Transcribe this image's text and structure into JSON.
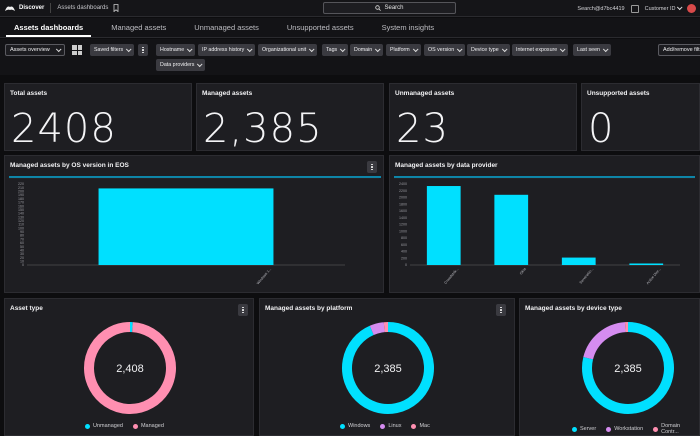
{
  "topbar": {
    "app_name": "Discover",
    "breadcrumb": "Assets dashboards",
    "search_label": "Search",
    "user": "Search@d7bc4419",
    "customer": "Customer ID"
  },
  "tabs": [
    {
      "label": "Assets dashboards",
      "active": true
    },
    {
      "label": "Managed assets"
    },
    {
      "label": "Unmanaged assets"
    },
    {
      "label": "Unsupported assets"
    },
    {
      "label": "System insights"
    }
  ],
  "toolbar": {
    "view_select": "Assets overview",
    "saved_filters": "Saved filters",
    "filters": [
      "Hostname",
      "IP address history",
      "Organizational unit",
      "Tags",
      "Domain",
      "Platform",
      "OS version",
      "Device type",
      "Internet exposure",
      "Last seen"
    ],
    "data_providers": "Data providers",
    "add_remove": "Add/remove filt"
  },
  "kpis": [
    {
      "title": "Total assets",
      "value": "2408"
    },
    {
      "title": "Managed assets",
      "value": "2,385"
    },
    {
      "title": "Unmanaged assets",
      "value": "23"
    },
    {
      "title": "Unsupported assets",
      "value": "0"
    }
  ],
  "chart_data": [
    {
      "type": "bar",
      "title": "Managed assets by OS version in EOS",
      "categories": [
        "Windows 1..."
      ],
      "values": [
        208
      ],
      "ylim": [
        0,
        220
      ],
      "yticks": [
        0,
        10,
        20,
        30,
        40,
        50,
        60,
        70,
        80,
        90,
        100,
        110,
        120,
        130,
        140,
        150,
        160,
        170,
        180,
        190,
        200,
        210,
        220
      ],
      "color": "#00e0ff"
    },
    {
      "type": "bar",
      "title": "Managed assets by data provider",
      "categories": [
        "Crowdstrik...",
        "Okta",
        "ServiceNo...",
        "Active Dire..."
      ],
      "values": [
        2340,
        2080,
        220,
        45
      ],
      "ylim": [
        0,
        2400
      ],
      "yticks": [
        0,
        200,
        400,
        600,
        800,
        1000,
        1200,
        1400,
        1600,
        1800,
        2000,
        2200,
        2400
      ],
      "color": "#00e0ff"
    },
    {
      "type": "pie",
      "title": "Asset type",
      "center_label": "2,408",
      "slices": [
        {
          "name": "Unmanaged",
          "value": 23,
          "color": "#00e0ff"
        },
        {
          "name": "Managed",
          "value": 2385,
          "color": "#ff8fb1"
        }
      ],
      "legend": "bottom"
    },
    {
      "type": "pie",
      "title": "Managed assets by platform",
      "center_label": "2,385",
      "slices": [
        {
          "name": "Windows",
          "value": 2230,
          "color": "#00e0ff"
        },
        {
          "name": "Linux",
          "value": 120,
          "color": "#d58cf0"
        },
        {
          "name": "Mac",
          "value": 35,
          "color": "#ff8fb1"
        }
      ],
      "legend": "bottom"
    },
    {
      "type": "pie",
      "title": "Managed assets by device type",
      "center_label": "2,385",
      "slices": [
        {
          "name": "Server",
          "value": 1880,
          "color": "#00e0ff"
        },
        {
          "name": "Workstation",
          "value": 480,
          "color": "#d58cf0"
        },
        {
          "name": "Domain Contr...",
          "value": 25,
          "color": "#ff8fb1"
        }
      ],
      "legend": "bottom"
    }
  ]
}
